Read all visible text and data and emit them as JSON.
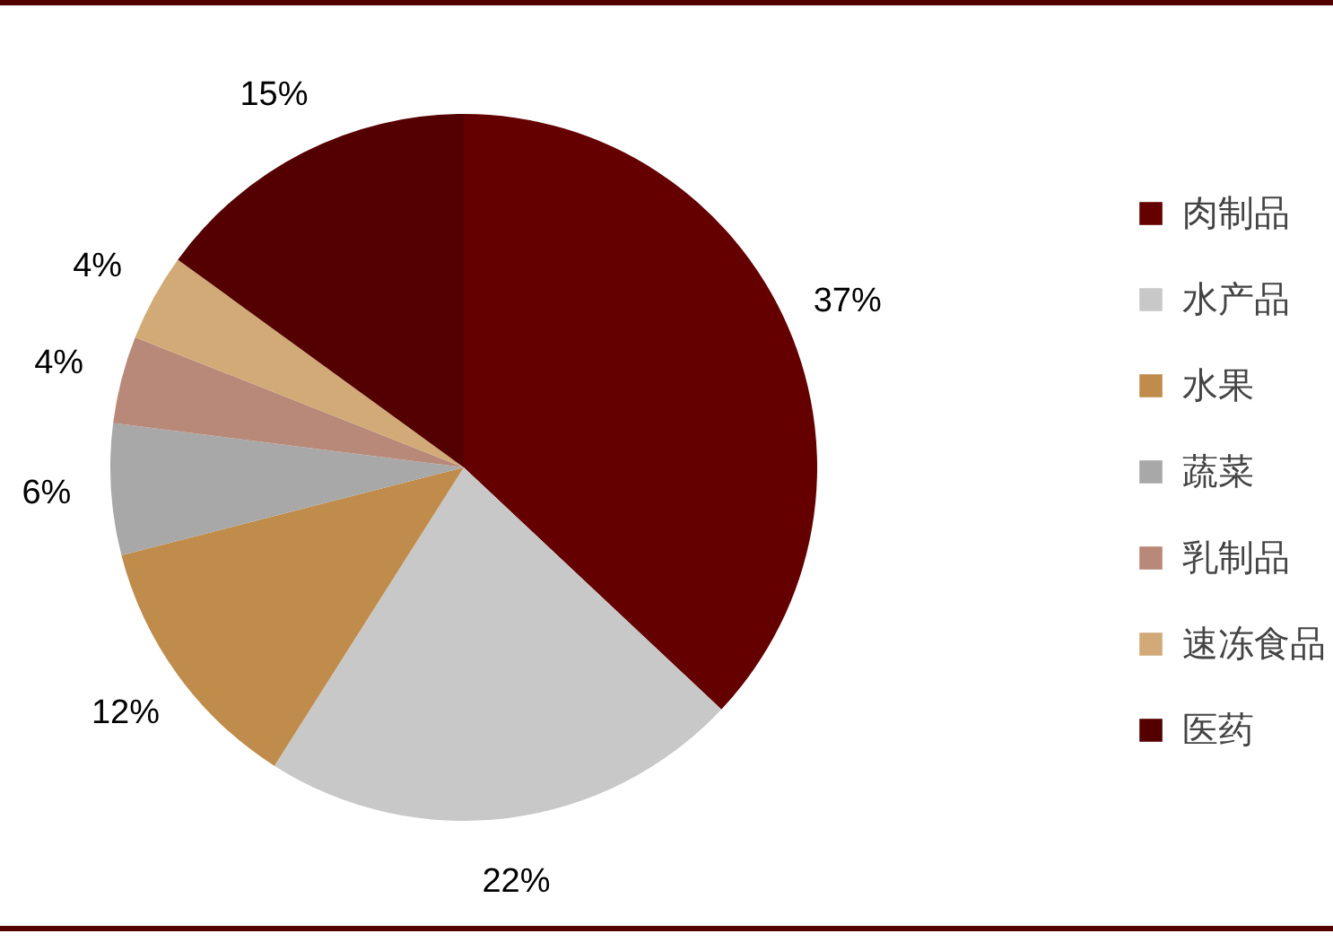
{
  "chart_data": {
    "type": "pie",
    "categories": [
      "肉制品",
      "水产品",
      "水果",
      "蔬菜",
      "乳制品",
      "速冻食品",
      "医药"
    ],
    "values": [
      37,
      22,
      12,
      6,
      4,
      4,
      15
    ],
    "colors": [
      "#650000",
      "#c8c8c8",
      "#bf8c4c",
      "#a8a8a8",
      "#b88878",
      "#d2aa78",
      "#550000"
    ],
    "value_labels": [
      "37%",
      "22%",
      "12%",
      "6%",
      "4%",
      "4%",
      "15%"
    ],
    "legend": "right"
  }
}
